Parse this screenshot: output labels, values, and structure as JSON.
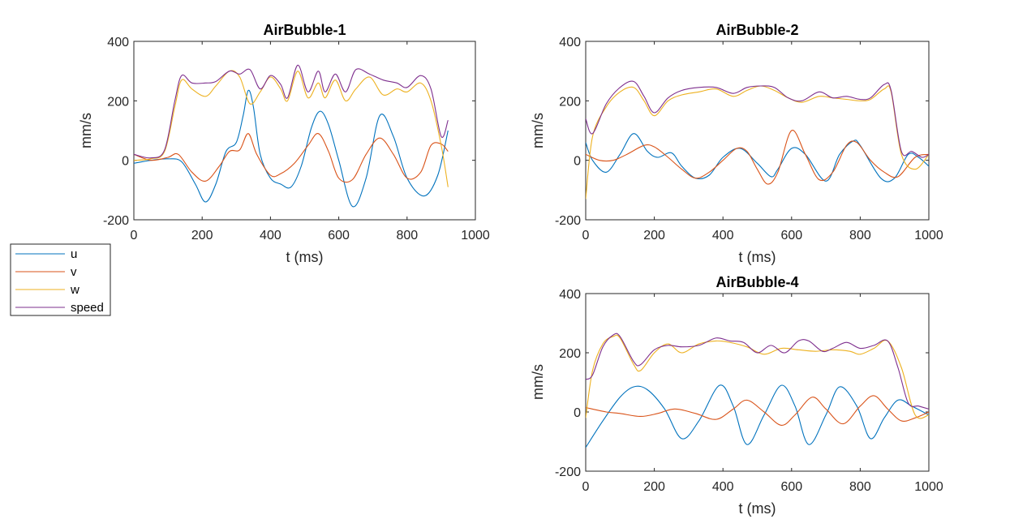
{
  "chart_data": [
    {
      "type": "line",
      "title": "AirBubble-1",
      "xlabel": "t (ms)",
      "ylabel": "mm/s",
      "xlim": [
        0,
        1000
      ],
      "ylim": [
        -200,
        400
      ],
      "xticks": [
        0,
        200,
        400,
        600,
        800,
        1000
      ],
      "yticks": [
        -200,
        0,
        200,
        400
      ],
      "series": [
        {
          "name": "u",
          "x": [
            0,
            50,
            100,
            140,
            180,
            210,
            240,
            270,
            300,
            320,
            335,
            350,
            370,
            400,
            430,
            460,
            490,
            520,
            545,
            570,
            600,
            640,
            680,
            720,
            760,
            800,
            850,
            890,
            920
          ],
          "y": [
            -10,
            0,
            5,
            -5,
            -80,
            -140,
            -80,
            30,
            60,
            150,
            235,
            180,
            20,
            -60,
            -80,
            -90,
            -20,
            110,
            165,
            120,
            0,
            -155,
            -60,
            150,
            80,
            -60,
            -120,
            -50,
            100
          ]
        },
        {
          "name": "v",
          "x": [
            0,
            50,
            100,
            130,
            170,
            210,
            250,
            280,
            310,
            335,
            360,
            400,
            430,
            470,
            510,
            540,
            570,
            600,
            640,
            680,
            720,
            760,
            800,
            840,
            870,
            900,
            920
          ],
          "y": [
            20,
            0,
            10,
            20,
            -40,
            -70,
            -20,
            30,
            35,
            90,
            20,
            -50,
            -45,
            -10,
            50,
            90,
            30,
            -60,
            -65,
            20,
            75,
            20,
            -60,
            -40,
            50,
            55,
            30
          ]
        },
        {
          "name": "w",
          "x": [
            0,
            50,
            90,
            120,
            140,
            170,
            210,
            240,
            280,
            310,
            340,
            370,
            400,
            430,
            450,
            480,
            510,
            540,
            560,
            590,
            620,
            650,
            690,
            730,
            770,
            800,
            840,
            870,
            900,
            920
          ],
          "y": [
            0,
            5,
            30,
            180,
            270,
            240,
            215,
            250,
            300,
            280,
            190,
            230,
            280,
            240,
            200,
            300,
            210,
            260,
            210,
            270,
            200,
            240,
            280,
            220,
            240,
            230,
            260,
            200,
            50,
            -90
          ]
        },
        {
          "name": "speed",
          "x": [
            0,
            50,
            90,
            120,
            140,
            170,
            210,
            240,
            280,
            310,
            340,
            370,
            400,
            430,
            450,
            480,
            510,
            540,
            560,
            590,
            620,
            650,
            690,
            730,
            770,
            800,
            840,
            870,
            900,
            920
          ],
          "y": [
            20,
            8,
            35,
            200,
            285,
            260,
            260,
            265,
            300,
            290,
            305,
            240,
            285,
            255,
            210,
            320,
            230,
            300,
            230,
            290,
            230,
            305,
            290,
            270,
            260,
            245,
            285,
            240,
            80,
            135
          ]
        }
      ]
    },
    {
      "type": "line",
      "title": "AirBubble-2",
      "xlabel": "t (ms)",
      "ylabel": "mm/s",
      "xlim": [
        0,
        1000
      ],
      "ylim": [
        -200,
        400
      ],
      "xticks": [
        0,
        200,
        400,
        600,
        800,
        1000
      ],
      "yticks": [
        -200,
        0,
        200,
        400
      ],
      "series": [
        {
          "name": "u",
          "x": [
            0,
            20,
            60,
            100,
            140,
            180,
            210,
            250,
            280,
            320,
            360,
            400,
            450,
            500,
            540,
            560,
            600,
            640,
            700,
            740,
            780,
            800,
            860,
            900,
            940,
            970,
            1000
          ],
          "y": [
            60,
            0,
            -40,
            20,
            90,
            30,
            10,
            25,
            -20,
            -60,
            -50,
            10,
            40,
            -10,
            -55,
            -30,
            40,
            20,
            -70,
            20,
            65,
            50,
            -60,
            -60,
            20,
            10,
            -20
          ]
        },
        {
          "name": "v",
          "x": [
            0,
            40,
            80,
            120,
            170,
            200,
            240,
            280,
            320,
            360,
            400,
            440,
            470,
            500,
            530,
            560,
            600,
            640,
            680,
            720,
            760,
            790,
            830,
            870,
            910,
            960,
            1000
          ],
          "y": [
            20,
            0,
            0,
            20,
            50,
            45,
            10,
            -30,
            -60,
            -40,
            0,
            40,
            30,
            -30,
            -80,
            -40,
            100,
            20,
            -65,
            -40,
            50,
            60,
            0,
            -40,
            -55,
            10,
            20
          ]
        },
        {
          "name": "w",
          "x": [
            0,
            20,
            60,
            100,
            140,
            170,
            200,
            240,
            280,
            330,
            380,
            430,
            470,
            510,
            550,
            590,
            630,
            680,
            720,
            760,
            800,
            830,
            870,
            890,
            920,
            960,
            1000
          ],
          "y": [
            -130,
            80,
            180,
            230,
            245,
            200,
            150,
            200,
            220,
            230,
            240,
            215,
            235,
            250,
            235,
            210,
            195,
            215,
            210,
            205,
            200,
            205,
            240,
            230,
            20,
            -30,
            20
          ]
        },
        {
          "name": "speed",
          "x": [
            0,
            20,
            60,
            100,
            140,
            170,
            200,
            240,
            280,
            330,
            380,
            430,
            470,
            510,
            550,
            590,
            630,
            680,
            720,
            760,
            800,
            830,
            870,
            890,
            920,
            950,
            980,
            1000
          ],
          "y": [
            140,
            90,
            190,
            245,
            265,
            215,
            160,
            210,
            235,
            245,
            245,
            225,
            245,
            250,
            245,
            210,
            200,
            230,
            210,
            215,
            205,
            210,
            255,
            235,
            30,
            30,
            10,
            20
          ]
        }
      ]
    },
    {
      "type": "line",
      "title": "AirBubble-4",
      "xlabel": "t (ms)",
      "ylabel": "mm/s",
      "xlim": [
        0,
        1000
      ],
      "ylim": [
        -200,
        400
      ],
      "xticks": [
        0,
        200,
        400,
        600,
        800,
        1000
      ],
      "yticks": [
        -200,
        0,
        200,
        400
      ],
      "series": [
        {
          "name": "u",
          "x": [
            0,
            50,
            100,
            140,
            180,
            230,
            280,
            330,
            390,
            430,
            470,
            520,
            570,
            610,
            650,
            700,
            740,
            790,
            830,
            870,
            910,
            950,
            1000
          ],
          "y": [
            -120,
            -30,
            50,
            85,
            75,
            10,
            -90,
            -30,
            90,
            20,
            -110,
            -10,
            90,
            20,
            -110,
            -10,
            85,
            20,
            -90,
            -20,
            40,
            20,
            -10
          ]
        },
        {
          "name": "v",
          "x": [
            0,
            60,
            100,
            160,
            210,
            260,
            320,
            380,
            430,
            470,
            520,
            570,
            610,
            660,
            700,
            750,
            800,
            840,
            880,
            920,
            960,
            1000
          ],
          "y": [
            15,
            0,
            -5,
            -15,
            -5,
            10,
            -5,
            -25,
            10,
            40,
            0,
            -45,
            -10,
            50,
            10,
            -40,
            20,
            55,
            10,
            -30,
            -20,
            0
          ]
        },
        {
          "name": "w",
          "x": [
            0,
            20,
            50,
            80,
            100,
            140,
            160,
            200,
            240,
            280,
            330,
            380,
            420,
            470,
            520,
            570,
            620,
            670,
            720,
            770,
            800,
            840,
            880,
            920,
            960,
            1000
          ],
          "y": [
            -20,
            140,
            230,
            255,
            250,
            160,
            140,
            200,
            230,
            200,
            230,
            240,
            235,
            220,
            195,
            215,
            210,
            205,
            210,
            205,
            195,
            215,
            240,
            150,
            -10,
            -10
          ]
        },
        {
          "name": "speed",
          "x": [
            0,
            20,
            50,
            80,
            100,
            140,
            160,
            200,
            240,
            280,
            330,
            380,
            420,
            460,
            500,
            540,
            580,
            620,
            650,
            690,
            720,
            760,
            800,
            840,
            880,
            910,
            940,
            970,
            1000
          ],
          "y": [
            110,
            125,
            220,
            260,
            255,
            170,
            160,
            210,
            225,
            220,
            225,
            250,
            240,
            235,
            200,
            225,
            200,
            240,
            240,
            205,
            215,
            235,
            215,
            225,
            240,
            150,
            30,
            20,
            10
          ]
        }
      ]
    }
  ],
  "legend": {
    "entries": [
      "u",
      "v",
      "w",
      "speed"
    ],
    "placement": "left"
  },
  "colors": {
    "u": "#0072BD",
    "v": "#D95319",
    "w": "#EDB120",
    "speed": "#7E2F8E"
  }
}
